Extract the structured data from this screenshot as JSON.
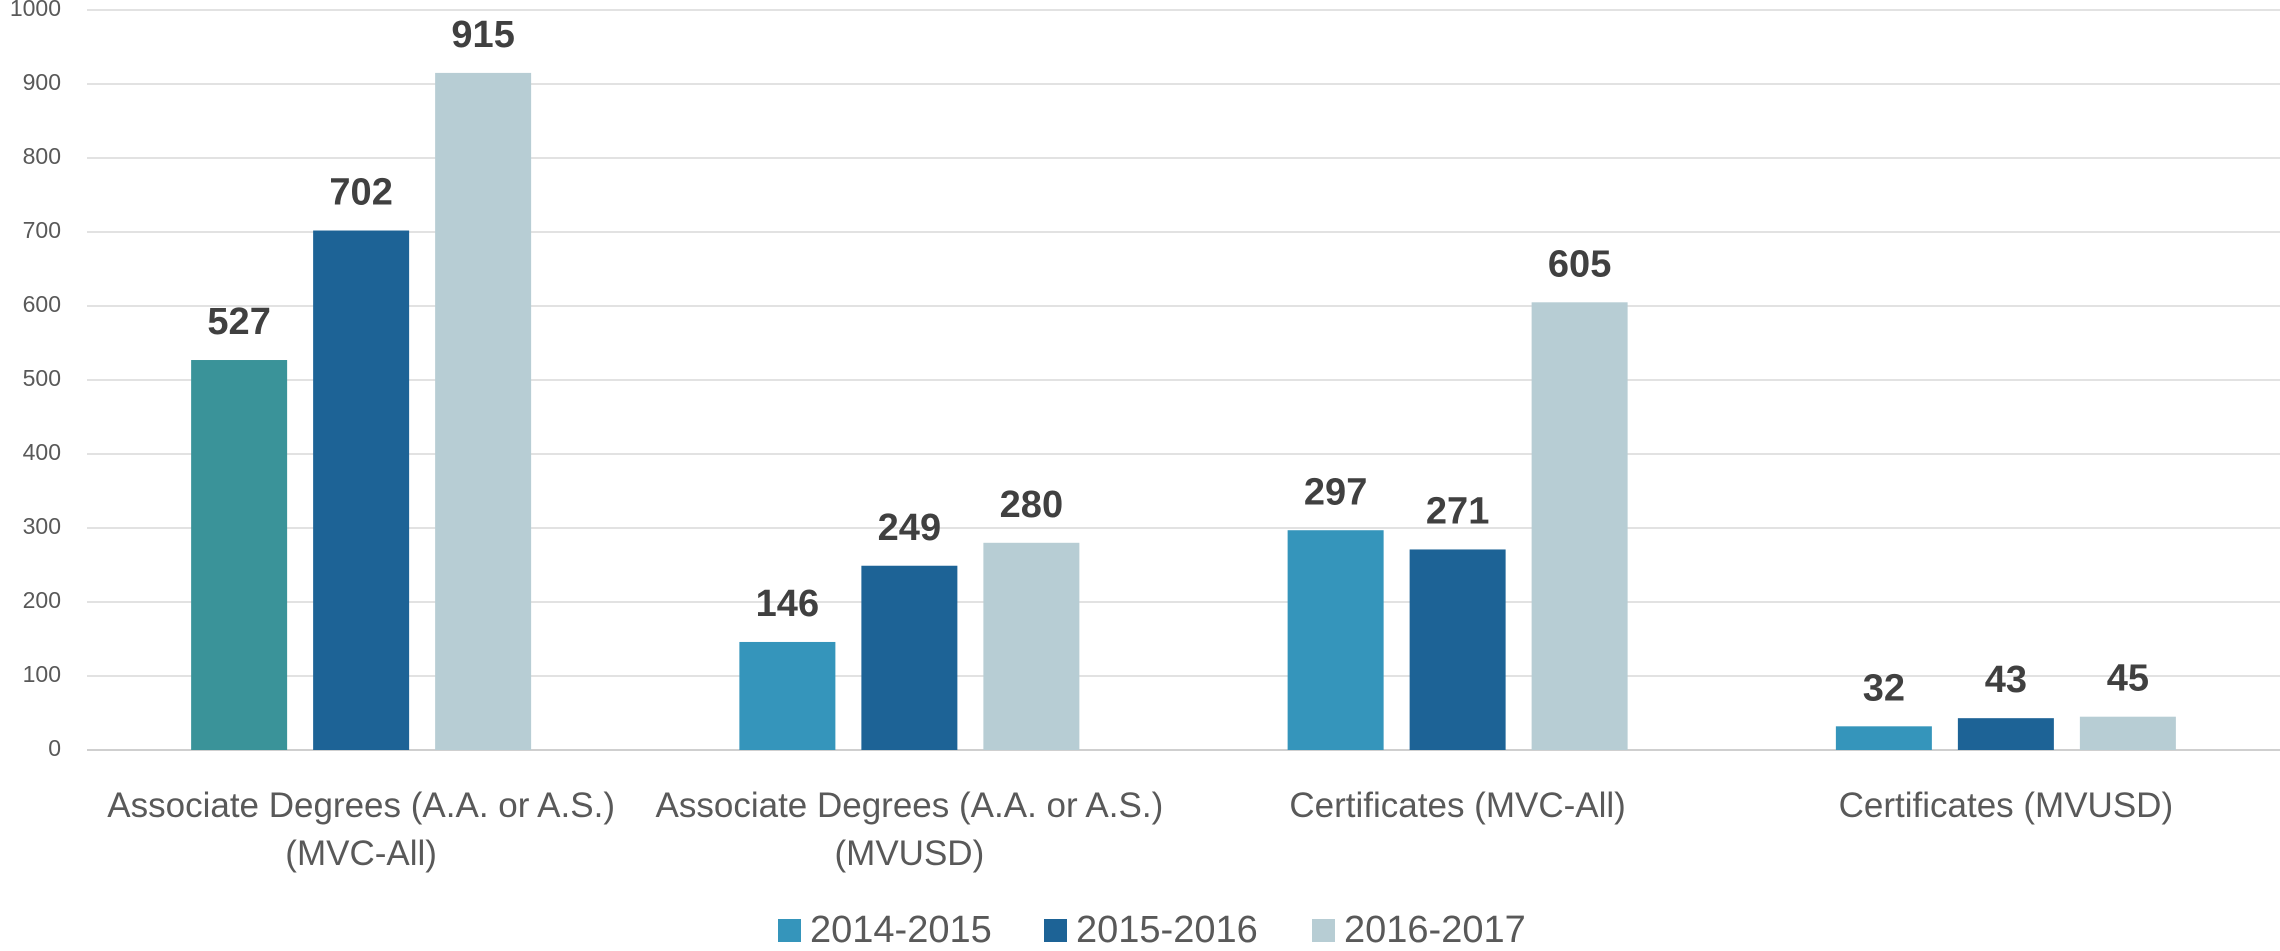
{
  "chart_data": {
    "type": "bar",
    "categories": [
      "Associate Degrees (A.A. or A.S.) (MVC-All)",
      "Associate Degrees (A.A. or A.S.) (MVUSD)",
      "Certificates (MVC-All)",
      "Certificates (MVUSD)"
    ],
    "series": [
      {
        "name": "2014-2015",
        "color": "#3595bb",
        "colors": [
          "#3a9399",
          "#3595bb",
          "#3595bb",
          "#3595bb"
        ],
        "values": [
          527,
          146,
          297,
          32
        ]
      },
      {
        "name": "2015-2016",
        "color": "#1d6396",
        "values": [
          702,
          249,
          271,
          43
        ]
      },
      {
        "name": "2016-2017",
        "color": "#b7cdd4",
        "values": [
          915,
          280,
          605,
          45
        ]
      }
    ],
    "ylim": [
      0,
      1000
    ],
    "yticks": [
      0,
      100,
      200,
      300,
      400,
      500,
      600,
      700,
      800,
      900,
      1000
    ],
    "grid": true,
    "legend": "bottom"
  }
}
